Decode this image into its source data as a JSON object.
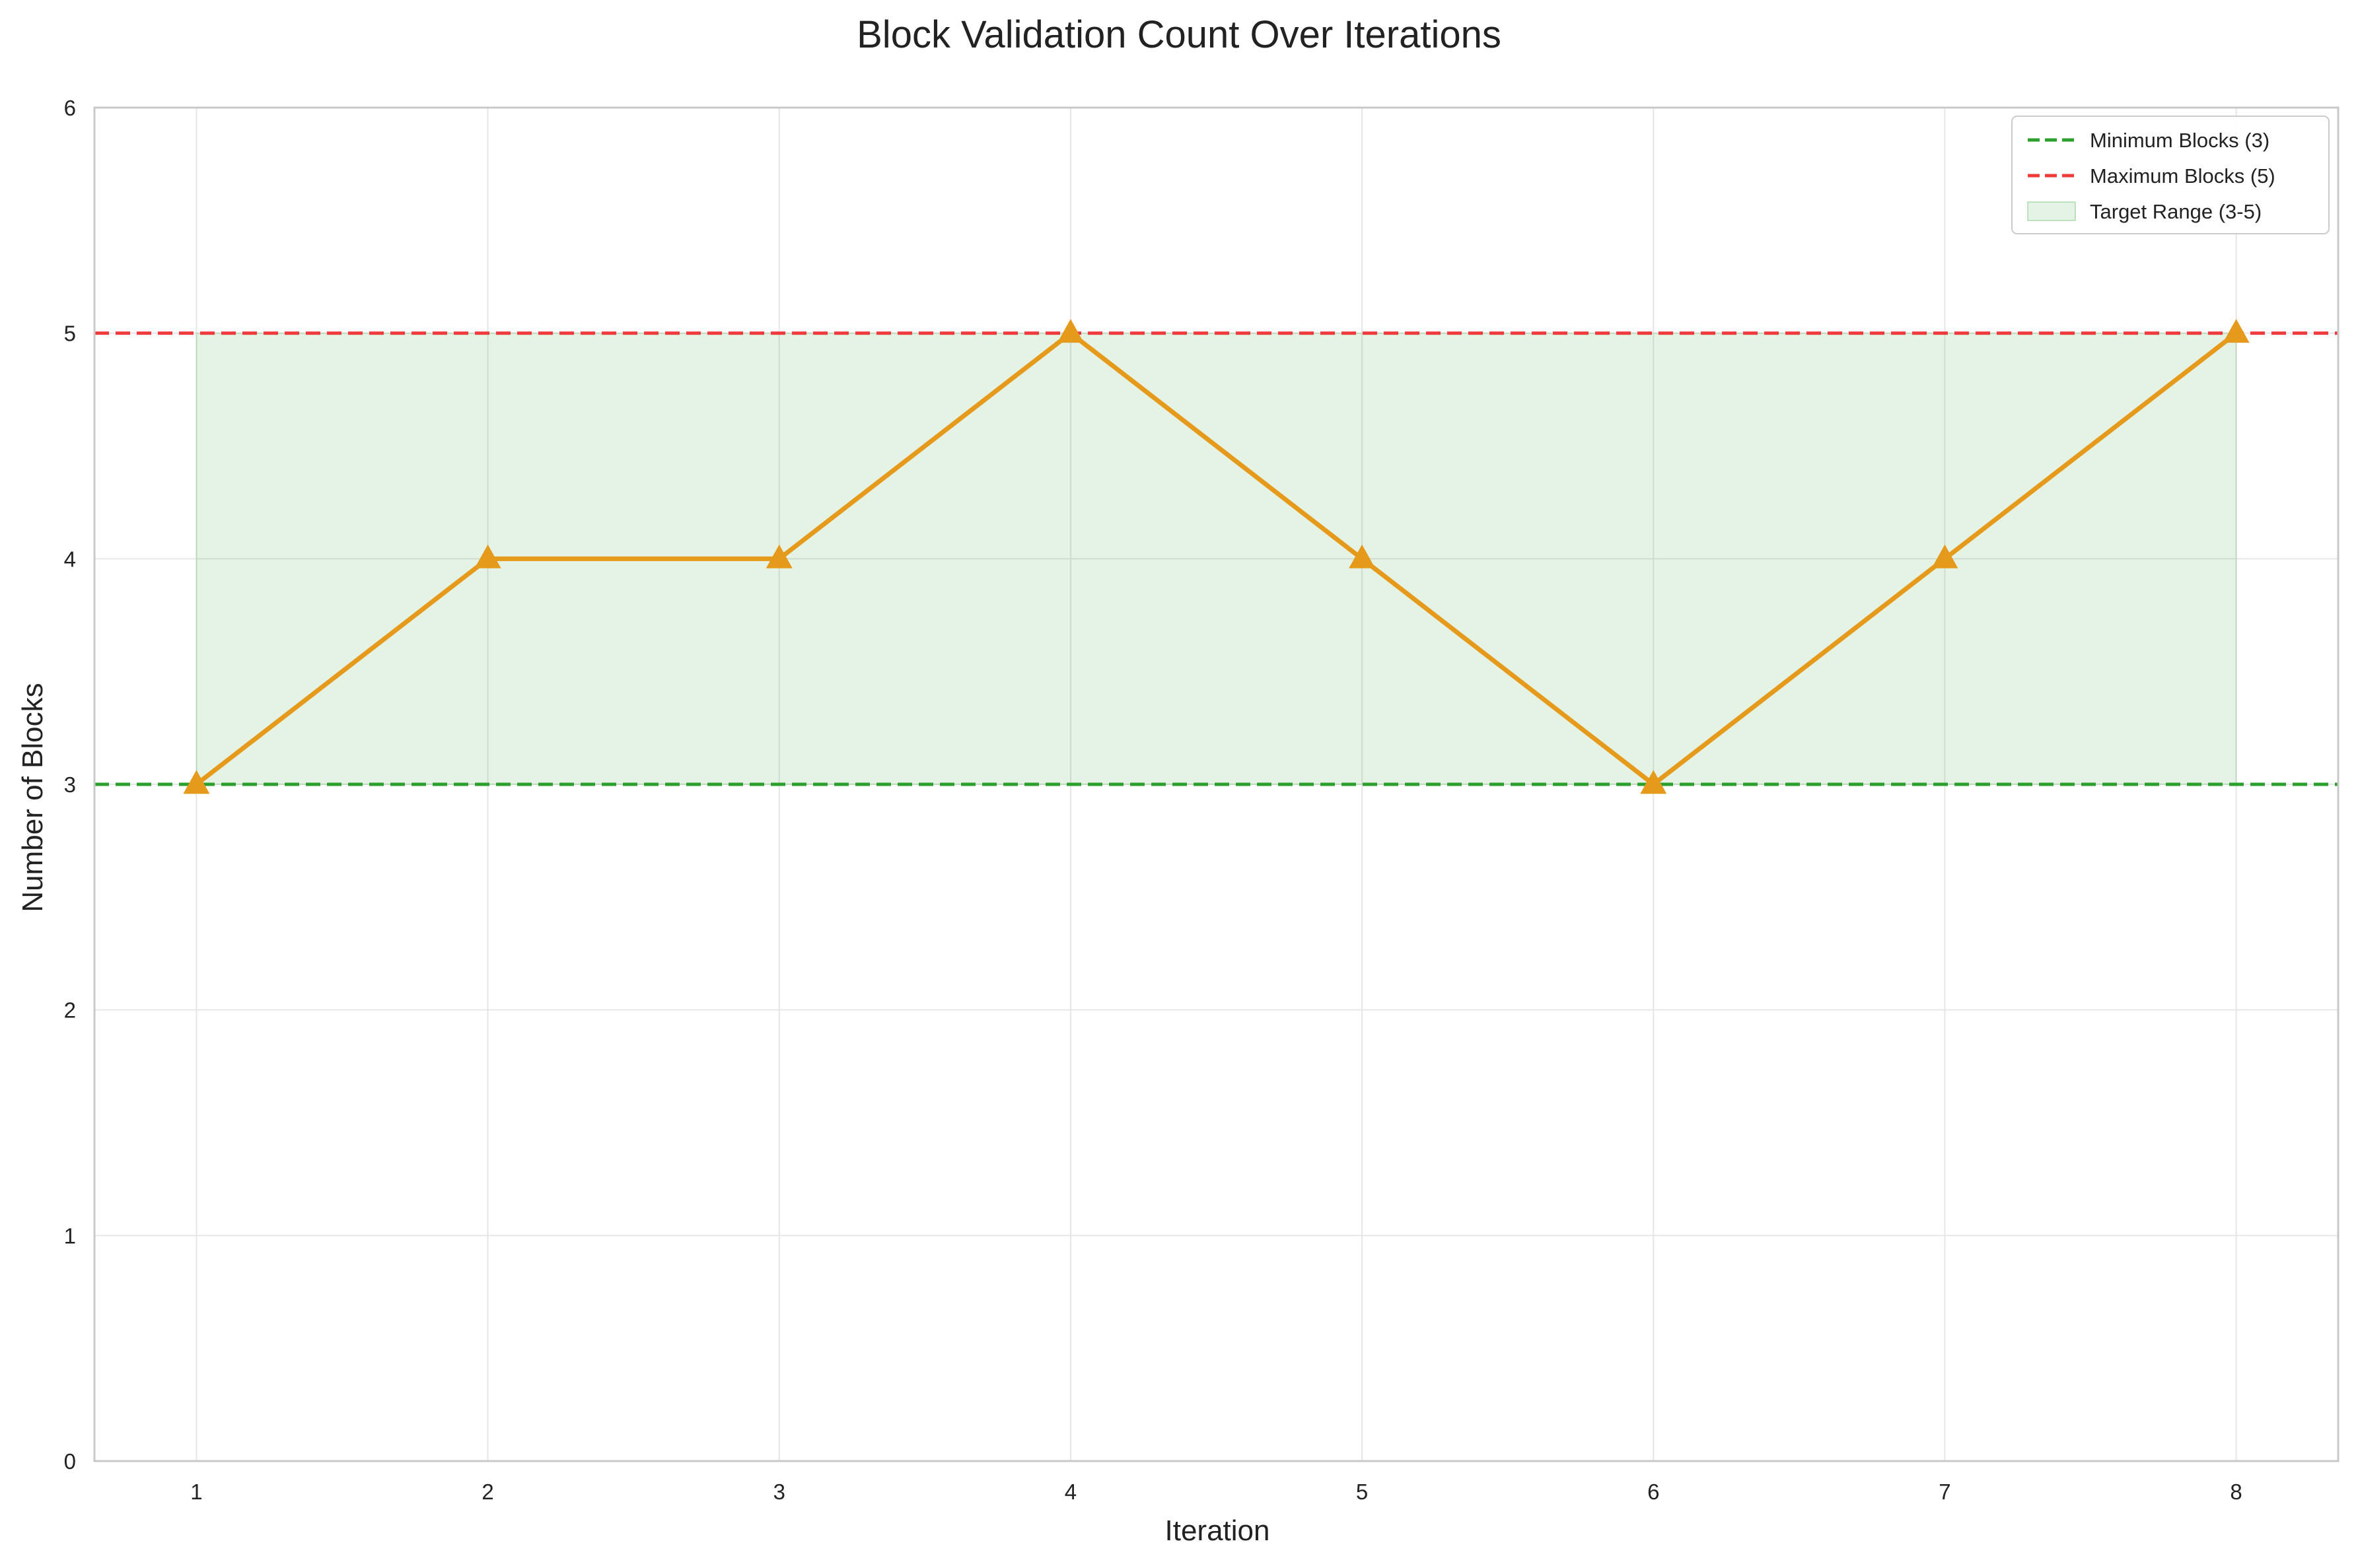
{
  "chart_data": {
    "type": "line",
    "title": "Block Validation Count Over Iterations",
    "xlabel": "Iteration",
    "ylabel": "Number of Blocks",
    "x": [
      1,
      2,
      3,
      4,
      5,
      6,
      7,
      8
    ],
    "xticks": [
      "1",
      "2",
      "3",
      "4",
      "5",
      "6",
      "7",
      "8"
    ],
    "yticks": [
      "0",
      "1",
      "2",
      "3",
      "4",
      "5",
      "6"
    ],
    "xlim": [
      0.65,
      8.35
    ],
    "ylim": [
      0,
      6
    ],
    "grid": true,
    "series": [
      {
        "values": [
          3,
          4,
          4,
          5,
          4,
          3,
          4,
          5
        ],
        "color": "#e69a1c",
        "marker": "triangle"
      }
    ],
    "reference_lines": [
      {
        "name": "Minimum Blocks (3)",
        "y": 3,
        "color": "#2ca02c",
        "style": "dashed"
      },
      {
        "name": "Maximum Blocks (5)",
        "y": 5,
        "color": "#ef3b3b",
        "style": "dashed"
      }
    ],
    "band": {
      "name": "Target Range (3-5)",
      "y_from": 3,
      "y_to": 5,
      "x_from": 1,
      "x_to": 8,
      "color": "#2ca02c"
    },
    "legend_position": "top-right"
  }
}
